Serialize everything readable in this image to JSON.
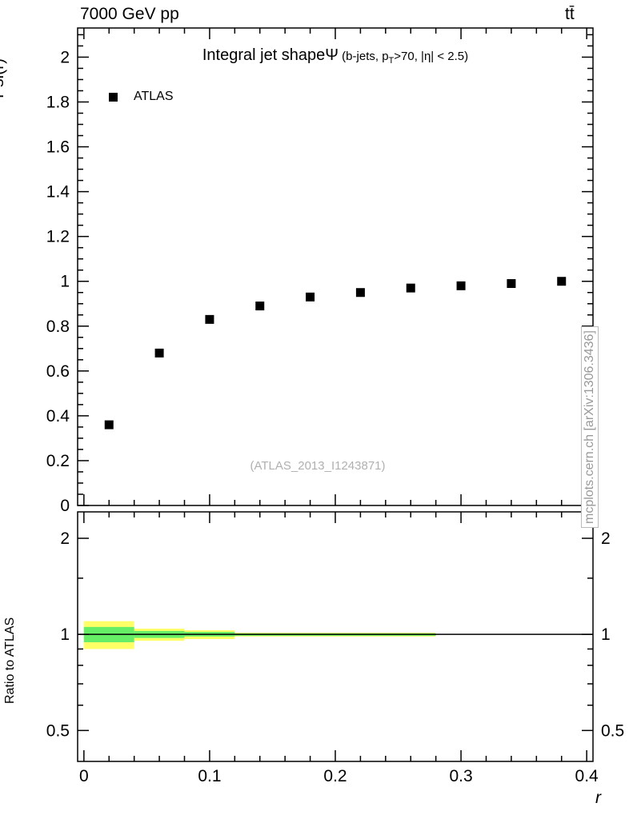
{
  "header": {
    "beam": "7000 GeV pp",
    "process": "tt̄"
  },
  "plot_title": {
    "main": "Integral jet shape",
    "psi": "Ψ",
    "cond_pre": " (b-jets, p",
    "cond_sub": "T",
    "cond_post": ">70, |η| < 2.5)"
  },
  "legend": {
    "label": "ATLAS"
  },
  "watermark": "(ATLAS_2013_I1243871)",
  "side_note": "mcplots.cern.ch [arXiv:1306.3436]",
  "axes": {
    "top_y_label": "Psi(r)",
    "ratio_y_label": "Ratio to ATLAS",
    "x_label": "r"
  },
  "chart_data": {
    "type": "scatter",
    "title": "Integral jet shape Ψ (b-jets, p_T>70, |η| < 2.5)",
    "xlabel": "r",
    "ylabel": "Psi(r)",
    "x_ticks": [
      0,
      0.1,
      0.2,
      0.3,
      0.4
    ],
    "top_y_ticks": [
      0,
      0.2,
      0.4,
      0.6,
      0.8,
      1,
      1.2,
      1.4,
      1.6,
      1.8,
      2
    ],
    "series": [
      {
        "name": "ATLAS",
        "marker": "square",
        "color": "#000000",
        "x": [
          0.02,
          0.06,
          0.1,
          0.14,
          0.18,
          0.22,
          0.26,
          0.3,
          0.34,
          0.38
        ],
        "y": [
          0.36,
          0.68,
          0.83,
          0.89,
          0.93,
          0.95,
          0.97,
          0.98,
          0.99,
          1.0
        ]
      }
    ],
    "ratio": {
      "ylabel": "Ratio to ATLAS",
      "scale": "log",
      "y_ticks": [
        0.5,
        1,
        2
      ],
      "y_minor_ticks": [
        0.6,
        0.7,
        0.8,
        0.9,
        1.5
      ],
      "reference_line_y": 1,
      "band_colors": {
        "outer": "#ffff66",
        "inner": "#66ee66"
      },
      "bands": [
        {
          "x0": 0.0,
          "x1": 0.04,
          "outer": [
            0.9,
            1.1
          ],
          "inner": [
            0.945,
            1.055
          ]
        },
        {
          "x0": 0.04,
          "x1": 0.08,
          "outer": [
            0.955,
            1.042
          ],
          "inner": [
            0.975,
            1.025
          ]
        },
        {
          "x0": 0.08,
          "x1": 0.12,
          "outer": [
            0.967,
            1.03
          ],
          "inner": [
            0.985,
            1.018
          ]
        },
        {
          "x0": 0.12,
          "x1": 0.28,
          "outer": [
            0.985,
            1.012
          ],
          "inner": [
            0.99,
            1.007
          ]
        }
      ]
    },
    "layout": {
      "x_range": [
        -0.005,
        0.405
      ],
      "top_y_range": [
        0,
        2.13
      ],
      "ratio_y_range": [
        0.4,
        2.42
      ],
      "grid": false,
      "legend_position": "top-left-inside"
    }
  }
}
